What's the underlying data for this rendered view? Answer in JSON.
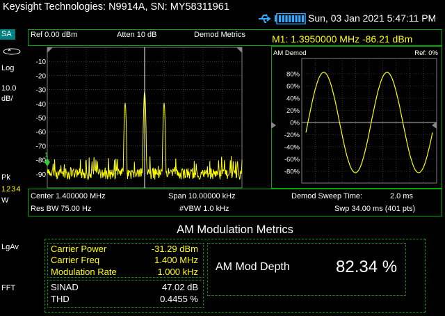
{
  "title_bar": {
    "instrument": "Keysight Technologies: N9914A, SN: MY58311961",
    "datetime": "Sun, 03 Jan 2021 5:47:11 PM",
    "battery_level": 1.0
  },
  "left_panel": {
    "mode": "SA",
    "scale_type": "Log",
    "scale_value": "10.0",
    "scale_unit": "dB/",
    "detector": "Pk",
    "traces": "1234",
    "trace_mode": "W",
    "averaging": "LgAv",
    "fft": "FFT"
  },
  "header": {
    "ref_level": "Ref 0.00 dBm",
    "attenuation": "Atten 10 dB",
    "view_mode": "Demod Metrics",
    "marker": "M1:  1.3950000 MHz  -86.21 dBm"
  },
  "spectrum": {
    "y_ticks": [
      "-10",
      "-20",
      "-30",
      "-40",
      "-50",
      "-60",
      "-70",
      "-80",
      "-90"
    ],
    "marker_label": "1"
  },
  "demod_panel": {
    "title": "AM Demod",
    "ref": "Ref: 0%",
    "y_ticks": [
      "80%",
      "60%",
      "40%",
      "20%",
      "0%",
      "-20%",
      "-40%",
      "-60%",
      "-80%"
    ]
  },
  "info": {
    "center": "Center 1.400000 MHz",
    "span": "Span 10.00000 kHz",
    "sweep_time_label": "Demod Sweep Time:",
    "sweep_time_value": "2.0 ms",
    "rbw": "Res BW 75.00  Hz",
    "vbw": "#VBW 1.0 kHz",
    "swp": "Swp 34.00 ms (401 pts)"
  },
  "metrics": {
    "title": "AM Modulation Metrics",
    "carrier_power_label": "Carrier Power",
    "carrier_power_value": "-31.29  dBm",
    "carrier_freq_label": "Carrier Freq",
    "carrier_freq_value": "1.400 MHz",
    "mod_rate_label": "Modulation Rate",
    "mod_rate_value": "1.000 kHz",
    "sinad_label": "SINAD",
    "sinad_value": "47.02  dB",
    "thd_label": "THD",
    "thd_value": "0.4455  %",
    "depth_label": "AM Mod Depth",
    "depth_value": "82.34 %"
  },
  "colors": {
    "trace": "#ffff00",
    "frame": "#00aa00",
    "grid": "#808080",
    "label_yellow": "#ffff00"
  }
}
